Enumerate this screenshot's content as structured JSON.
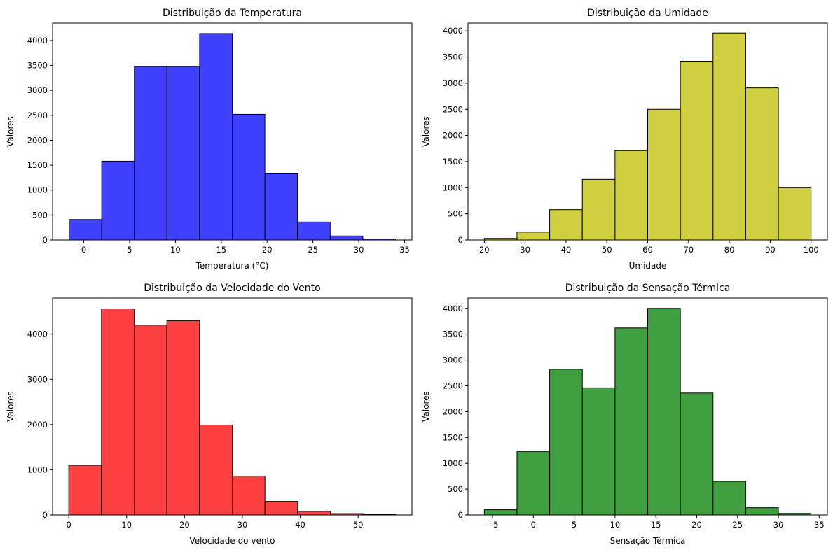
{
  "chart_data": [
    {
      "type": "bar",
      "title": "Distribuição da Temperatura",
      "xlabel": "Temperatura (°C)",
      "ylabel": "Valores",
      "color": "#0000ff",
      "bin_edges": [
        -1.6,
        1.96,
        5.52,
        9.08,
        12.64,
        16.2,
        19.76,
        23.32,
        26.88,
        30.44,
        34.0
      ],
      "values": [
        410,
        1580,
        3480,
        3480,
        4140,
        2520,
        1340,
        360,
        80,
        20
      ],
      "xlim": [
        -3.4,
        35.8
      ],
      "ylim": [
        0,
        4350
      ],
      "xticks": [
        0,
        5,
        10,
        15,
        20,
        25,
        30,
        35
      ],
      "yticks": [
        0,
        500,
        1000,
        1500,
        2000,
        2500,
        3000,
        3500,
        4000
      ],
      "grid": false
    },
    {
      "type": "bar",
      "title": "Distribuição da Umidade",
      "xlabel": "Umidade",
      "ylabel": "Valores",
      "color": "#bfbf00",
      "bin_edges": [
        20,
        28,
        36,
        44,
        52,
        60,
        68,
        76,
        84,
        92,
        100
      ],
      "values": [
        30,
        150,
        580,
        1160,
        1710,
        2500,
        3420,
        3960,
        2910,
        1000
      ],
      "xlim": [
        16,
        104
      ],
      "ylim": [
        0,
        4150
      ],
      "xticks": [
        20,
        30,
        40,
        50,
        60,
        70,
        80,
        90,
        100
      ],
      "yticks": [
        0,
        500,
        1000,
        1500,
        2000,
        2500,
        3000,
        3500,
        4000
      ],
      "grid": false
    },
    {
      "type": "bar",
      "title": "Distribuição da Velocidade do Vento",
      "xlabel": "Velocidade do vento",
      "ylabel": "Valores",
      "color": "#ff0000",
      "bin_edges": [
        0,
        5.65,
        11.3,
        16.95,
        22.6,
        28.25,
        33.9,
        39.55,
        45.2,
        50.85,
        56.5
      ],
      "values": [
        1100,
        4560,
        4200,
        4300,
        1990,
        860,
        300,
        80,
        30,
        10
      ],
      "xlim": [
        -2.8,
        59.3
      ],
      "ylim": [
        0,
        4800
      ],
      "xticks": [
        0,
        10,
        20,
        30,
        40,
        50
      ],
      "yticks": [
        0,
        1000,
        2000,
        3000,
        4000
      ],
      "grid": false
    },
    {
      "type": "bar",
      "title": "Distribuição da Sensação Térmica",
      "xlabel": "Sensação Térmica",
      "ylabel": "Valores",
      "color": "#008000",
      "bin_edges": [
        -6,
        -2,
        2,
        6,
        10,
        14,
        18,
        22,
        26,
        30,
        34
      ],
      "values": [
        100,
        1230,
        2820,
        2460,
        3620,
        4000,
        2360,
        650,
        140,
        30
      ],
      "xlim": [
        -8,
        36
      ],
      "ylim": [
        0,
        4200
      ],
      "xticks": [
        -5,
        0,
        5,
        10,
        15,
        20,
        25,
        30,
        35
      ],
      "yticks": [
        0,
        500,
        1000,
        1500,
        2000,
        2500,
        3000,
        3500,
        4000
      ],
      "grid": false
    }
  ]
}
